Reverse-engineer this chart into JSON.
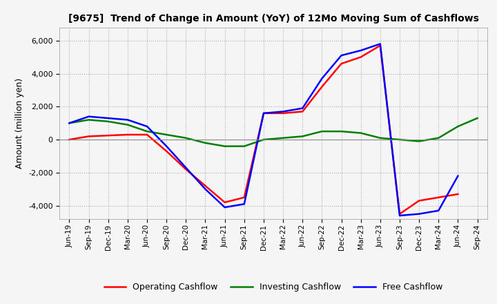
{
  "title": "[9675]  Trend of Change in Amount (YoY) of 12Mo Moving Sum of Cashflows",
  "ylabel": "Amount (million yen)",
  "ylim": [
    -4800,
    6800
  ],
  "yticks": [
    -4000,
    -2000,
    0,
    2000,
    4000,
    6000
  ],
  "legend_labels": [
    "Operating Cashflow",
    "Investing Cashflow",
    "Free Cashflow"
  ],
  "legend_colors": [
    "red",
    "green",
    "blue"
  ],
  "x_labels": [
    "Jun-19",
    "Sep-19",
    "Dec-19",
    "Mar-20",
    "Jun-20",
    "Sep-20",
    "Dec-20",
    "Mar-21",
    "Jun-21",
    "Sep-21",
    "Dec-21",
    "Mar-22",
    "Jun-22",
    "Sep-22",
    "Dec-22",
    "Mar-23",
    "Jun-23",
    "Sep-23",
    "Dec-23",
    "Mar-24",
    "Jun-24",
    "Sep-24"
  ],
  "operating": [
    0,
    200,
    250,
    300,
    300,
    -700,
    -1800,
    -2800,
    -3800,
    -3500,
    1600,
    1600,
    1700,
    3200,
    4600,
    5000,
    5700,
    -4500,
    -3700,
    -3500,
    -3300,
    null
  ],
  "investing": [
    1000,
    1200,
    1100,
    900,
    500,
    300,
    100,
    -200,
    -400,
    -400,
    0,
    100,
    200,
    500,
    500,
    400,
    100,
    0,
    -100,
    100,
    800,
    1300
  ],
  "free": [
    1000,
    1400,
    1300,
    1200,
    800,
    -400,
    -1700,
    -3000,
    -4100,
    -3900,
    1600,
    1700,
    1900,
    3700,
    5100,
    5400,
    5800,
    -4600,
    -4500,
    -4300,
    -2200,
    null
  ],
  "bg_color": "#f0f0f0",
  "plot_bg": "#f0f0f0"
}
